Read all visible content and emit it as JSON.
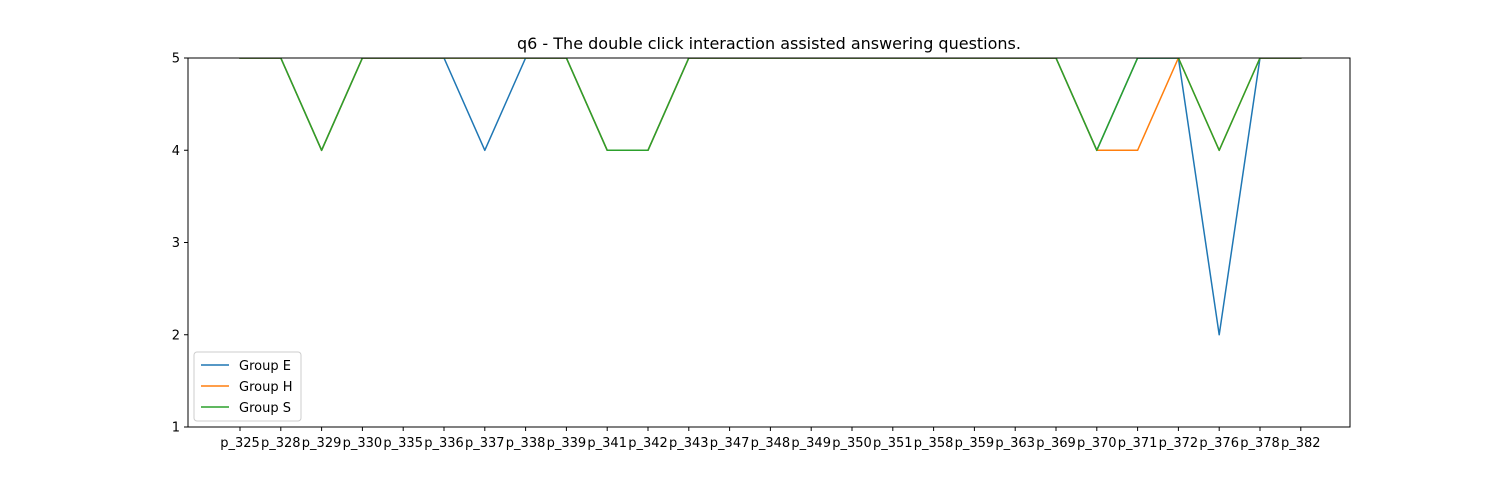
{
  "chart_data": {
    "type": "line",
    "title": "q6 - The double click interaction assisted answering questions.",
    "xlabel": "",
    "ylabel": "",
    "categories": [
      "p_325",
      "p_328",
      "p_329",
      "p_330",
      "p_335",
      "p_336",
      "p_337",
      "p_338",
      "p_339",
      "p_341",
      "p_342",
      "p_343",
      "p_347",
      "p_348",
      "p_349",
      "p_350",
      "p_351",
      "p_358",
      "p_359",
      "p_363",
      "p_369",
      "p_370",
      "p_371",
      "p_372",
      "p_376",
      "p_378",
      "p_382"
    ],
    "ylim": [
      1,
      5
    ],
    "yticks": [
      1,
      2,
      3,
      4,
      5
    ],
    "grid": false,
    "legend": "lower-left",
    "series": [
      {
        "name": "Group E",
        "color": "#1f77b4",
        "values": [
          5,
          5,
          4,
          5,
          5,
          5,
          4,
          5,
          5,
          4,
          4,
          5,
          5,
          5,
          5,
          5,
          5,
          5,
          5,
          5,
          5,
          4,
          5,
          5,
          2,
          5,
          5
        ]
      },
      {
        "name": "Group H",
        "color": "#ff7f0e",
        "values": [
          5,
          5,
          4,
          5,
          5,
          5,
          5,
          5,
          5,
          4,
          4,
          5,
          5,
          5,
          5,
          5,
          5,
          5,
          5,
          5,
          5,
          4,
          4,
          5,
          4,
          5,
          5
        ]
      },
      {
        "name": "Group S",
        "color": "#2ca02c",
        "values": [
          5,
          5,
          4,
          5,
          5,
          5,
          5,
          5,
          5,
          4,
          4,
          5,
          5,
          5,
          5,
          5,
          5,
          5,
          5,
          5,
          5,
          4,
          5,
          5,
          4,
          5,
          5
        ]
      }
    ]
  }
}
